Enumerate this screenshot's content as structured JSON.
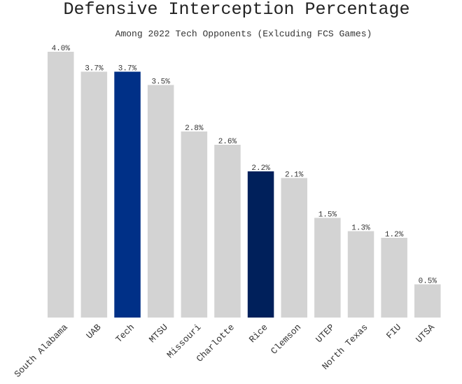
{
  "chart_data": {
    "type": "bar",
    "title": "Defensive Interception Percentage",
    "subtitle": "Among 2022 Tech Opponents (Exlcuding FCS Games)",
    "xlabel": "",
    "ylabel": "",
    "ylim": [
      0,
      4.0
    ],
    "grid": false,
    "categories": [
      "South Alabama",
      "UAB",
      "Tech",
      "MTSU",
      "Missouri",
      "Charlotte",
      "Rice",
      "Clemson",
      "UTEP",
      "North Texas",
      "FIU",
      "UTSA"
    ],
    "values": [
      4.0,
      3.7,
      3.7,
      3.5,
      2.8,
      2.6,
      2.2,
      2.1,
      1.5,
      1.3,
      1.2,
      0.5
    ],
    "value_labels": [
      "4.0%",
      "3.7%",
      "3.7%",
      "3.5%",
      "2.8%",
      "2.6%",
      "2.2%",
      "2.1%",
      "1.5%",
      "1.3%",
      "1.2%",
      "0.5%"
    ],
    "colors": {
      "default": "#d3d3d3",
      "Tech": "#003087",
      "Rice": "#00205b"
    }
  }
}
